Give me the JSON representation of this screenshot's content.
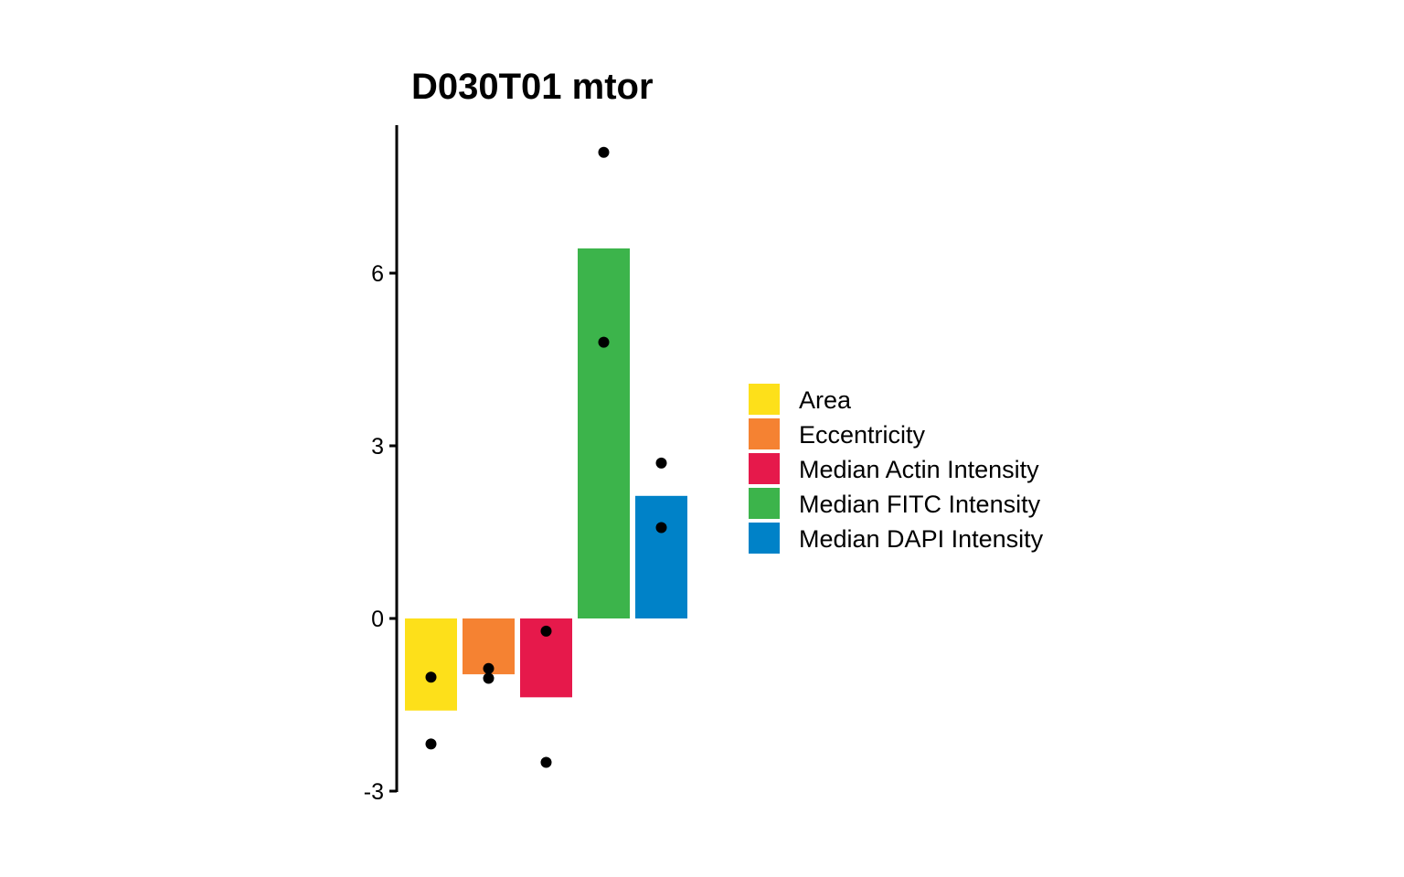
{
  "chart_data": {
    "type": "bar",
    "title": "D030T01 mtor",
    "xlabel": "",
    "ylabel": "",
    "ylim": [
      -3,
      8.6
    ],
    "yticks": [
      -3,
      0,
      3,
      6
    ],
    "grid": false,
    "legend_position": "right",
    "categories": [
      "Area",
      "Eccentricity",
      "Median Actin Intensity",
      "Median FITC Intensity",
      "Median DAPI Intensity"
    ],
    "values": [
      -1.6,
      -0.97,
      -1.37,
      6.43,
      2.13
    ],
    "colors": [
      "#FDE01A",
      "#F58232",
      "#E6194B",
      "#3CB44B",
      "#0082C8"
    ],
    "points": [
      [
        -1.02,
        -2.18
      ],
      [
        -0.87,
        -1.04
      ],
      [
        -0.22,
        -2.5
      ],
      [
        8.1,
        4.8
      ],
      [
        2.7,
        1.58
      ]
    ]
  }
}
